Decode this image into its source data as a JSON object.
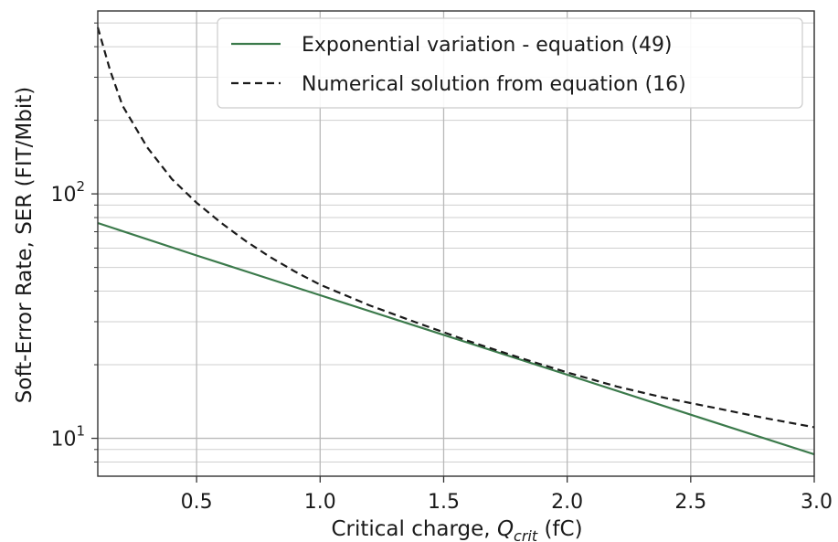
{
  "chart_data": {
    "type": "line",
    "xlabel": "Critical charge, Q_crit (fC)",
    "xlabel_parts": {
      "prefix": "Critical charge, ",
      "symbol": "Q",
      "subscript": "crit",
      "suffix": " (fC)"
    },
    "ylabel": "Soft-Error Rate, SER (FIT/Mbit)",
    "xlim": [
      0.1,
      3.0
    ],
    "ylim": [
      7.0,
      560
    ],
    "yscale": "log",
    "grid": true,
    "legend_position": "upper-right",
    "x_ticks": [
      {
        "value": 0.5,
        "label": "0.5"
      },
      {
        "value": 1.0,
        "label": "1.0"
      },
      {
        "value": 1.5,
        "label": "1.5"
      },
      {
        "value": 2.0,
        "label": "2.0"
      },
      {
        "value": 2.5,
        "label": "2.5"
      },
      {
        "value": 3.0,
        "label": "3.0"
      }
    ],
    "y_major_ticks": [
      {
        "value": 10,
        "base": "10",
        "exponent": "1"
      },
      {
        "value": 100,
        "base": "10",
        "exponent": "2"
      }
    ],
    "y_minor_ticks": [
      8,
      9,
      20,
      30,
      40,
      50,
      60,
      70,
      80,
      90,
      200,
      300,
      400,
      500
    ],
    "series": [
      {
        "name": "Exponential variation - equation (49)",
        "color": "#3b7a4b",
        "dash": "solid",
        "x": [
          0.1,
          0.5,
          1.0,
          1.5,
          2.0,
          2.5,
          3.0
        ],
        "y": [
          76,
          56,
          38.5,
          26.5,
          18.2,
          12.5,
          8.6
        ]
      },
      {
        "name": "Numerical solution from equation (16)",
        "color": "#1a1a1a",
        "dash": "dashed",
        "x": [
          0.1,
          0.15,
          0.2,
          0.3,
          0.4,
          0.5,
          0.6,
          0.7,
          0.8,
          0.9,
          1.0,
          1.2,
          1.4,
          1.6,
          1.8,
          2.0,
          2.2,
          2.4,
          2.6,
          2.8,
          3.0
        ],
        "y": [
          480,
          320,
          230,
          155,
          115,
          92,
          76,
          64,
          55,
          48,
          42.5,
          35,
          29.5,
          25,
          21.5,
          18.6,
          16.3,
          14.6,
          13.3,
          12.1,
          11.1
        ]
      }
    ]
  }
}
